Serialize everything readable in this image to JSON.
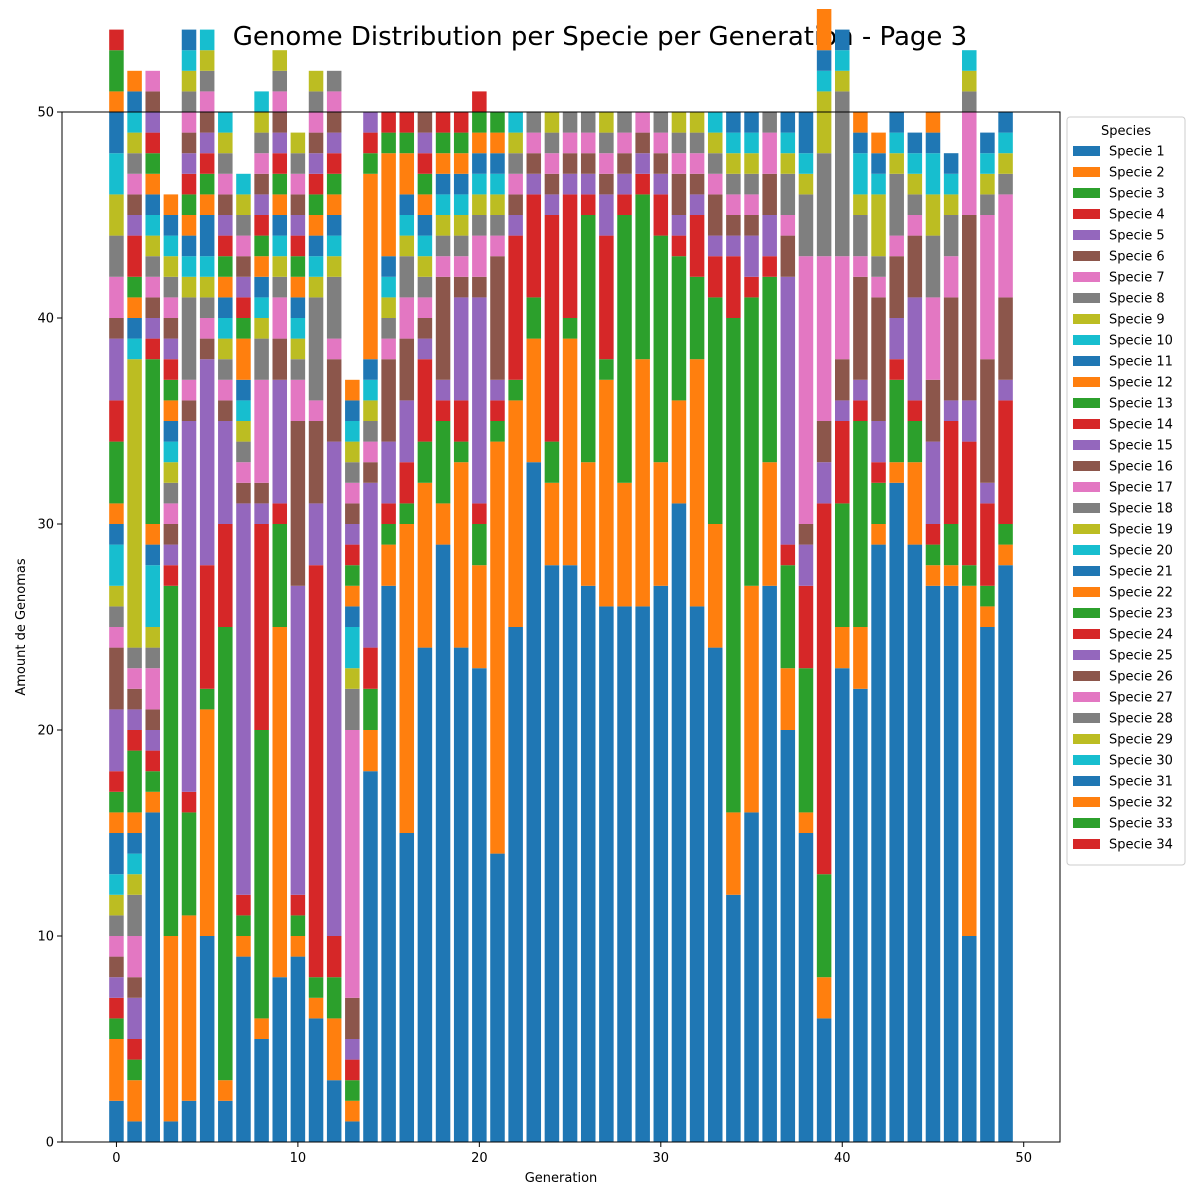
{
  "chart_data": {
    "type": "bar",
    "stacked": true,
    "title": "Genome Distribution per Specie per Generation - Page 3",
    "xlabel": "Generation",
    "ylabel": "Amount de Genomas",
    "xlim": [
      -3,
      52
    ],
    "ylim": [
      0,
      50
    ],
    "x_ticks": [
      0,
      10,
      20,
      30,
      40,
      50
    ],
    "y_ticks": [
      0,
      10,
      20,
      30,
      40,
      50
    ],
    "grid": false,
    "legend_title": "Species",
    "legend_position": "upper-right-outside",
    "palette": [
      "#1f77b4",
      "#ff7f0e",
      "#2ca02c",
      "#d62728",
      "#9467bd",
      "#8c564b",
      "#e377c2",
      "#7f7f7f",
      "#bcbd22",
      "#17becf"
    ],
    "series_names": [
      "Specie 1",
      "Specie 2",
      "Specie 3",
      "Specie 4",
      "Specie 5",
      "Specie 6",
      "Specie 7",
      "Specie 8",
      "Specie 9",
      "Specie 10",
      "Specie 11",
      "Specie 12",
      "Specie 13",
      "Specie 14",
      "Specie 15",
      "Specie 16",
      "Specie 17",
      "Specie 18",
      "Specie 19",
      "Specie 20",
      "Specie 21",
      "Specie 22",
      "Specie 23",
      "Specie 24",
      "Specie 25",
      "Specie 26",
      "Specie 27",
      "Specie 28",
      "Specie 29",
      "Specie 30",
      "Specie 31",
      "Specie 32",
      "Specie 33",
      "Specie 34"
    ],
    "generations": [
      0,
      1,
      2,
      3,
      4,
      5,
      6,
      7,
      8,
      9,
      10,
      11,
      12,
      13,
      14,
      15,
      16,
      17,
      18,
      19,
      20,
      21,
      22,
      23,
      24,
      25,
      26,
      27,
      28,
      29,
      30,
      31,
      32,
      33,
      34,
      35,
      36,
      37,
      38,
      39,
      40,
      41,
      42,
      43,
      44,
      45,
      46,
      47,
      48,
      49
    ],
    "stacks": [
      [
        2,
        3,
        1,
        1,
        1,
        1,
        1,
        1,
        1,
        1,
        2,
        1,
        1,
        1,
        3,
        3,
        1,
        1,
        1,
        2,
        1,
        1,
        3,
        2,
        3,
        1,
        2,
        2,
        2,
        2,
        2,
        1,
        2,
        1
      ],
      [
        1,
        2,
        1,
        1,
        2,
        1,
        2,
        2,
        1,
        1,
        1,
        1,
        3,
        1,
        1,
        1,
        1,
        1,
        14,
        1,
        1,
        1,
        1,
        2,
        1,
        1,
        1,
        1,
        1,
        1,
        1,
        1
      ],
      [
        16,
        1,
        1,
        1,
        1,
        1,
        2,
        1,
        1,
        3,
        1,
        1,
        8,
        1,
        1,
        1,
        1,
        1,
        1,
        1,
        1,
        1,
        1,
        1,
        1,
        1,
        1
      ],
      [
        1,
        9,
        17,
        1,
        1,
        1,
        1,
        1,
        1,
        1,
        1,
        1,
        1,
        1,
        1,
        1,
        1,
        1,
        1,
        1,
        1,
        1
      ],
      [
        2,
        9,
        5,
        1,
        18,
        1,
        1,
        4,
        1,
        1,
        1,
        1,
        1,
        1,
        1,
        1,
        1,
        1,
        1,
        1,
        1
      ],
      [
        10,
        11,
        1,
        6,
        10,
        1,
        1,
        1,
        1,
        1,
        2,
        1,
        1,
        1,
        1,
        1,
        1,
        1,
        1,
        1
      ],
      [
        2,
        1,
        22,
        5,
        5,
        1,
        1,
        1,
        1,
        1,
        1,
        1,
        1,
        1,
        1,
        1,
        1,
        1,
        1,
        1
      ],
      [
        9,
        1,
        1,
        1,
        19,
        1,
        1,
        1,
        1,
        1,
        1,
        2,
        1,
        1,
        1,
        1,
        1,
        1,
        1,
        1
      ],
      [
        5,
        1,
        14,
        10,
        1,
        1,
        5,
        2,
        1,
        1,
        1,
        1,
        1,
        1,
        1,
        1,
        1,
        1,
        1,
        1
      ],
      [
        8,
        17,
        5,
        1,
        6,
        2,
        2,
        1,
        1,
        1,
        1,
        1,
        1,
        1,
        1,
        1,
        1,
        1,
        1
      ],
      [
        9,
        1,
        1,
        1,
        15,
        8,
        2,
        1,
        1,
        1,
        1,
        1,
        1,
        1,
        1,
        1,
        1,
        1,
        1
      ],
      [
        6,
        1,
        1,
        20,
        3,
        4,
        1,
        5,
        1,
        1,
        1,
        1,
        1,
        1,
        1,
        1,
        1,
        1,
        1
      ],
      [
        3,
        3,
        2,
        2,
        24,
        4,
        1,
        3,
        1,
        1,
        1,
        1,
        1,
        1,
        1,
        1,
        1,
        1
      ],
      [
        1,
        1,
        1,
        1,
        1,
        2,
        13,
        2,
        1,
        2,
        1,
        1,
        1,
        1,
        1,
        1,
        1,
        1,
        1,
        1,
        1,
        1
      ],
      [
        18,
        2,
        2,
        2,
        8,
        1,
        1,
        1,
        1,
        1,
        1,
        9,
        1,
        1,
        1
      ],
      [
        27,
        2,
        1,
        1,
        3,
        4,
        1,
        1,
        1,
        1,
        1,
        5,
        1,
        1
      ],
      [
        15,
        15,
        1,
        2,
        3,
        3,
        2,
        2,
        1,
        1,
        1,
        2,
        1,
        1
      ],
      [
        24,
        8,
        2,
        4,
        1,
        1,
        1,
        1,
        1,
        1,
        1,
        1,
        1,
        1,
        1,
        1
      ],
      [
        29,
        2,
        4,
        1,
        1,
        5,
        1,
        1,
        1,
        1,
        1,
        1,
        1,
        1
      ],
      [
        24,
        9,
        1,
        2,
        5,
        1,
        1,
        1,
        1,
        1,
        1,
        1,
        1,
        1
      ],
      [
        23,
        5,
        2,
        1,
        10,
        1,
        2,
        1,
        1,
        1,
        1,
        1,
        1,
        1
      ],
      [
        14,
        20,
        1,
        1,
        1,
        6,
        1,
        1,
        1,
        1,
        1,
        1,
        1
      ],
      [
        25,
        11,
        1,
        7,
        1,
        1,
        1,
        1,
        1,
        1
      ],
      [
        33,
        6,
        2,
        5,
        1,
        1,
        1,
        1
      ],
      [
        28,
        4,
        2,
        11,
        1,
        1,
        1,
        1,
        1
      ],
      [
        28,
        11,
        1,
        6,
        1,
        1,
        1,
        1
      ],
      [
        27,
        6,
        12,
        1,
        1,
        1,
        1,
        1
      ],
      [
        26,
        11,
        1,
        6,
        2,
        1,
        1,
        1,
        1
      ],
      [
        26,
        6,
        13,
        1,
        1,
        1,
        1,
        1
      ],
      [
        26,
        12,
        8,
        1,
        1,
        1,
        1
      ],
      [
        27,
        6,
        11,
        2,
        1,
        1,
        1,
        1
      ],
      [
        31,
        5,
        7,
        1,
        1,
        2,
        1,
        1,
        1
      ],
      [
        26,
        12,
        4,
        3,
        1,
        1,
        1,
        1,
        1
      ],
      [
        24,
        6,
        11,
        2,
        1,
        2,
        1,
        1,
        1,
        1
      ],
      [
        12,
        4,
        24,
        3,
        1,
        1,
        1,
        1,
        1,
        1,
        1
      ],
      [
        16,
        11,
        14,
        1,
        2,
        1,
        1,
        1,
        1,
        1,
        1
      ],
      [
        27,
        6,
        9,
        1,
        2,
        2,
        2,
        1
      ],
      [
        20,
        3,
        5,
        1,
        13,
        2,
        1,
        2,
        1,
        1,
        1
      ],
      [
        15,
        1,
        7,
        4,
        2,
        1,
        13,
        3,
        1,
        1,
        2
      ],
      [
        6,
        2,
        5,
        18,
        2,
        2,
        8,
        5,
        3,
        1,
        1,
        2
      ],
      [
        23,
        2,
        6,
        4,
        1,
        2,
        5,
        8,
        1,
        1,
        1
      ],
      [
        22,
        3,
        10,
        1,
        1,
        5,
        1,
        2,
        1,
        2,
        1,
        1
      ],
      [
        29,
        1,
        2,
        1,
        2,
        6,
        1,
        1,
        3,
        1,
        1,
        1
      ],
      [
        32,
        1,
        4,
        1,
        2,
        3,
        1,
        3,
        1,
        1,
        1
      ],
      [
        29,
        4,
        2,
        1,
        5,
        3,
        1,
        1,
        1,
        1,
        1
      ],
      [
        27,
        1,
        1,
        1,
        4,
        3,
        4,
        3,
        2,
        2,
        1,
        1
      ],
      [
        27,
        1,
        2,
        5,
        1,
        5,
        2,
        2,
        1,
        1,
        1
      ],
      [
        10,
        17,
        1,
        6,
        2,
        9,
        5,
        1,
        1,
        1
      ],
      [
        25,
        1,
        1,
        4,
        1,
        6,
        7,
        1,
        1,
        1,
        1
      ],
      [
        28,
        1,
        1,
        6,
        1,
        4,
        5,
        1,
        1,
        1,
        1
      ]
    ]
  }
}
